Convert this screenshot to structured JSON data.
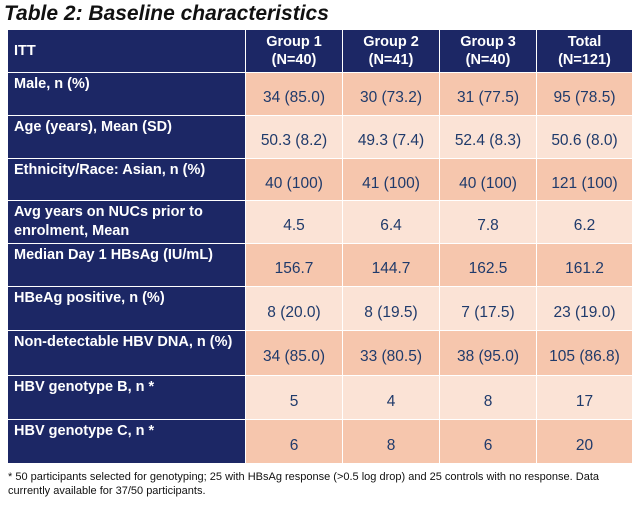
{
  "title": "Table 2: Baseline characteristics",
  "header": {
    "itt": "ITT",
    "columns": [
      {
        "name": "Group 1",
        "n": "(N=40)"
      },
      {
        "name": "Group 2",
        "n": "(N=41)"
      },
      {
        "name": "Group 3",
        "n": "(N=40)"
      },
      {
        "name": "Total",
        "n": "(N=121)"
      }
    ]
  },
  "rows": [
    {
      "label": "Male, n (%)",
      "values": [
        "34 (85.0)",
        "30 (73.2)",
        "31 (77.5)",
        "95 (78.5)"
      ]
    },
    {
      "label": "Age (years), Mean (SD)",
      "values": [
        "50.3 (8.2)",
        "49.3 (7.4)",
        "52.4 (8.3)",
        "50.6 (8.0)"
      ]
    },
    {
      "label": "Ethnicity/Race: Asian, n (%)",
      "values": [
        "40 (100)",
        "41 (100)",
        "40 (100)",
        "121 (100)"
      ]
    },
    {
      "label": "Avg years on NUCs prior to enrolment, Mean",
      "values": [
        "4.5",
        "6.4",
        "7.8",
        "6.2"
      ]
    },
    {
      "label": "Median Day 1 HBsAg (IU/mL)",
      "values": [
        "156.7",
        "144.7",
        "162.5",
        "161.2"
      ]
    },
    {
      "label": "HBeAg positive, n (%)",
      "values": [
        "8 (20.0)",
        "8 (19.5)",
        "7 (17.5)",
        "23 (19.0)"
      ]
    },
    {
      "label": "Non-detectable HBV DNA, n (%)",
      "values": [
        "34 (85.0)",
        "33 (80.5)",
        "38 (95.0)",
        "105 (86.8)"
      ]
    },
    {
      "label": "HBV genotype B, n *",
      "values": [
        "5",
        "4",
        "8",
        "17"
      ]
    },
    {
      "label": "HBV genotype C, n *",
      "values": [
        "6",
        "8",
        "6",
        "20"
      ]
    }
  ],
  "footnote": "* 50 participants selected for genotyping; 25 with HBsAg response (>0.5 log drop) and 25 controls with no response. Data currently available for 37/50 participants."
}
